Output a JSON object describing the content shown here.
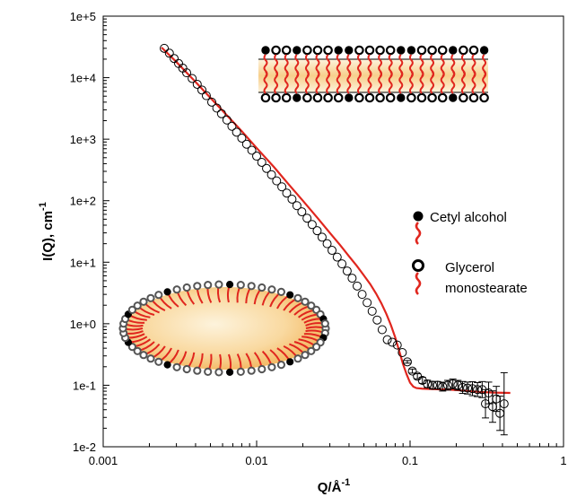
{
  "chart_data": {
    "type": "scatter",
    "xlabel": "Q/Å",
    "xlabel_sup": "-1",
    "ylabel": "I(Q), cm",
    "ylabel_sup": "-1",
    "x_scale": "log",
    "y_scale": "log",
    "xlim": [
      0.001,
      1
    ],
    "ylim": [
      0.01,
      100000
    ],
    "x_ticks": [
      {
        "value": 0.001,
        "label": "0.001"
      },
      {
        "value": 0.01,
        "label": "0.01"
      },
      {
        "value": 0.1,
        "label": "0.1"
      },
      {
        "value": 1,
        "label": "1"
      }
    ],
    "y_ticks": [
      {
        "value": 0.01,
        "label": "1e-2"
      },
      {
        "value": 0.1,
        "label": "1e-1"
      },
      {
        "value": 1,
        "label": "1e+0"
      },
      {
        "value": 10,
        "label": "1e+1"
      },
      {
        "value": 100,
        "label": "1e+2"
      },
      {
        "value": 1000,
        "label": "1e+3"
      },
      {
        "value": 10000,
        "label": "1e+4"
      },
      {
        "value": 100000,
        "label": "1e+5"
      }
    ],
    "grid": false,
    "legend_position": "right",
    "series": [
      {
        "kind": "data",
        "marker": "open-circle",
        "color": "#000000",
        "x": [
          0.0025,
          0.0027,
          0.0029,
          0.0031,
          0.0033,
          0.0035,
          0.0038,
          0.0041,
          0.0044,
          0.0047,
          0.0051,
          0.0055,
          0.0059,
          0.0064,
          0.0069,
          0.0074,
          0.008,
          0.0086,
          0.0093,
          0.01,
          0.0108,
          0.0116,
          0.0125,
          0.0135,
          0.0146,
          0.0157,
          0.017,
          0.0183,
          0.0197,
          0.0213,
          0.023,
          0.0248,
          0.0267,
          0.0288,
          0.031,
          0.0335,
          0.036,
          0.0389,
          0.0419,
          0.0452,
          0.0487,
          0.0525,
          0.0566,
          0.061,
          0.0658,
          0.071,
          0.0765,
          0.0825,
          0.089,
          0.096,
          0.1035,
          0.1116,
          0.1203,
          0.1297,
          0.14,
          0.151,
          0.163,
          0.176,
          0.19,
          0.205,
          0.22,
          0.237,
          0.255,
          0.275,
          0.295,
          0.31,
          0.325,
          0.345,
          0.365,
          0.385,
          0.41
        ],
        "y": [
          30000,
          25000,
          20500,
          17000,
          14300,
          12000,
          9700,
          7800,
          6300,
          5100,
          4000,
          3200,
          2600,
          2050,
          1620,
          1300,
          1040,
          830,
          660,
          530,
          420,
          335,
          265,
          210,
          168,
          133,
          106,
          83,
          66,
          52,
          41,
          32.5,
          25.5,
          20,
          15.6,
          12.1,
          9.4,
          7.2,
          5.5,
          4.1,
          3,
          2.2,
          1.6,
          1.15,
          0.8,
          0.55,
          0.5,
          0.45,
          0.34,
          0.24,
          0.17,
          0.14,
          0.12,
          0.105,
          0.1,
          0.1,
          0.095,
          0.1,
          0.105,
          0.1,
          0.092,
          0.09,
          0.088,
          0.085,
          0.085,
          0.05,
          0.075,
          0.045,
          0.06,
          0.035,
          0.05
        ],
        "yerr_factor": [
          1,
          1,
          1,
          1,
          1,
          1,
          1,
          1,
          1,
          1,
          1,
          1,
          1,
          1,
          1,
          1,
          1,
          1,
          1,
          1,
          1,
          1,
          1,
          1,
          1,
          1,
          1,
          1,
          1,
          1,
          1,
          1,
          1,
          1,
          1,
          1,
          1,
          1,
          1,
          1,
          1,
          1,
          1,
          1,
          1,
          1,
          1,
          1,
          1,
          1.05,
          1.08,
          1.1,
          1.12,
          1.15,
          1.15,
          1.15,
          1.18,
          1.2,
          1.2,
          1.2,
          1.25,
          1.25,
          1.3,
          1.3,
          1.35,
          1.7,
          1.5,
          1.8,
          1.6,
          1.9,
          3.2
        ]
      },
      {
        "kind": "fit",
        "color": "#e0261e",
        "x": [
          0.0024,
          0.003,
          0.004,
          0.005,
          0.006,
          0.008,
          0.01,
          0.013,
          0.016,
          0.02,
          0.025,
          0.03,
          0.035,
          0.04,
          0.045,
          0.05,
          0.055,
          0.06,
          0.065,
          0.07,
          0.075,
          0.08,
          0.085,
          0.09,
          0.095,
          0.1,
          0.105,
          0.11,
          0.12,
          0.13,
          0.15,
          0.18,
          0.22,
          0.28,
          0.35,
          0.45
        ],
        "y": [
          31000,
          18000,
          8500,
          4700,
          2900,
          1350,
          720,
          350,
          190,
          100,
          52,
          30,
          19,
          12.5,
          8.7,
          6.1,
          4.4,
          3.1,
          2.15,
          1.45,
          0.95,
          0.6,
          0.36,
          0.22,
          0.15,
          0.11,
          0.095,
          0.09,
          0.088,
          0.087,
          0.086,
          0.085,
          0.082,
          0.078,
          0.076,
          0.075
        ]
      }
    ],
    "legend": [
      {
        "marker": "filled-circle",
        "label": "Cetyl alcohol"
      },
      {
        "marker": "open-circle",
        "label": "Glycerol monostearate",
        "label_lines": [
          "Glycerol",
          "monostearate"
        ]
      }
    ]
  },
  "colors": {
    "fit_line": "#e0261e",
    "lipid_tail": "#e0261e",
    "core_fill_light": "#fdf3dc",
    "core_fill_dark": "#f6c372",
    "marker": "#000000"
  },
  "illustrations": [
    {
      "name": "bilayer-schematic-icon"
    },
    {
      "name": "vesicle-schematic-icon"
    }
  ]
}
